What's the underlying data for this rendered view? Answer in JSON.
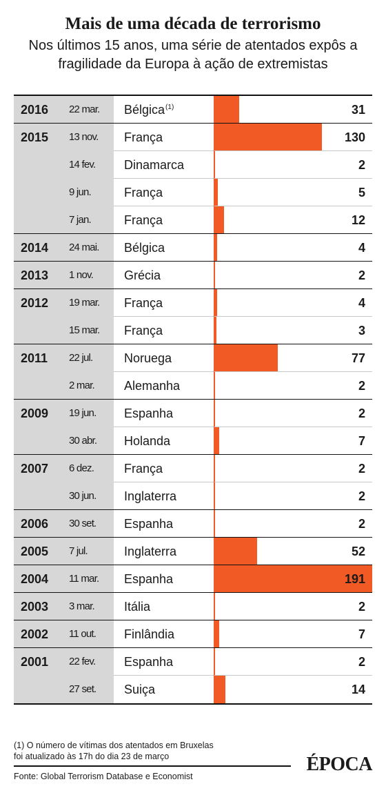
{
  "chart_data": {
    "type": "bar",
    "title": "Mais de uma década de terrorismo",
    "subtitle": "Nos últimos 15 anos, uma série de atentados expôs a fragilidade da Europa à ação de extremistas",
    "xlim": [
      0,
      191
    ],
    "groups": [
      {
        "year": "2016",
        "rows": [
          {
            "date": "22 mar.",
            "country": "Bélgica",
            "note": "(1)",
            "value": 31
          }
        ]
      },
      {
        "year": "2015",
        "rows": [
          {
            "date": "13 nov.",
            "country": "França",
            "value": 130
          },
          {
            "date": "14 fev.",
            "country": "Dinamarca",
            "value": 2
          },
          {
            "date": "9 jun.",
            "country": "França",
            "value": 5
          },
          {
            "date": "7 jan.",
            "country": "França",
            "value": 12
          }
        ]
      },
      {
        "year": "2014",
        "rows": [
          {
            "date": "24 mai.",
            "country": "Bélgica",
            "value": 4
          }
        ]
      },
      {
        "year": "2013",
        "rows": [
          {
            "date": "1 nov.",
            "country": "Grécia",
            "value": 2
          }
        ]
      },
      {
        "year": "2012",
        "rows": [
          {
            "date": "19 mar.",
            "country": "França",
            "value": 4
          },
          {
            "date": "15 mar.",
            "country": "França",
            "value": 3
          }
        ]
      },
      {
        "year": "2011",
        "rows": [
          {
            "date": "22 jul.",
            "country": "Noruega",
            "value": 77
          },
          {
            "date": "2 mar.",
            "country": "Alemanha",
            "value": 2
          }
        ]
      },
      {
        "year": "2009",
        "rows": [
          {
            "date": "19 jun.",
            "country": "Espanha",
            "value": 2
          },
          {
            "date": "30 abr.",
            "country": "Holanda",
            "value": 7
          }
        ]
      },
      {
        "year": "2007",
        "rows": [
          {
            "date": "6 dez.",
            "country": "França",
            "value": 2
          },
          {
            "date": "30 jun.",
            "country": "Inglaterra",
            "value": 2
          }
        ]
      },
      {
        "year": "2006",
        "rows": [
          {
            "date": "30 set.",
            "country": "Espanha",
            "value": 2
          }
        ]
      },
      {
        "year": "2005",
        "rows": [
          {
            "date": "7 jul.",
            "country": "Inglaterra",
            "value": 52
          }
        ]
      },
      {
        "year": "2004",
        "rows": [
          {
            "date": "11 mar.",
            "country": "Espanha",
            "value": 191
          }
        ]
      },
      {
        "year": "2003",
        "rows": [
          {
            "date": "3 mar.",
            "country": "Itália",
            "value": 2
          }
        ]
      },
      {
        "year": "2002",
        "rows": [
          {
            "date": "11 out.",
            "country": "Finlândia",
            "value": 7
          }
        ]
      },
      {
        "year": "2001",
        "rows": [
          {
            "date": "22 fev.",
            "country": "Espanha",
            "value": 2
          },
          {
            "date": "27 set.",
            "country": "Suiça",
            "value": 14
          }
        ]
      }
    ]
  },
  "colors": {
    "bar": "#f15a24",
    "year_column": "#d7d7d7",
    "text": "#1a1a1a",
    "rule": "#111111",
    "row_rule": "#c8c8c8"
  },
  "footnote": {
    "lines": [
      "(1) O número de vítimas dos atentados em Bruxelas",
      "foi atualizado às 17h do dia 23 de março"
    ]
  },
  "source": "Fonte: Global Terrorism Database e Economist",
  "logo": "ÉPOCA"
}
